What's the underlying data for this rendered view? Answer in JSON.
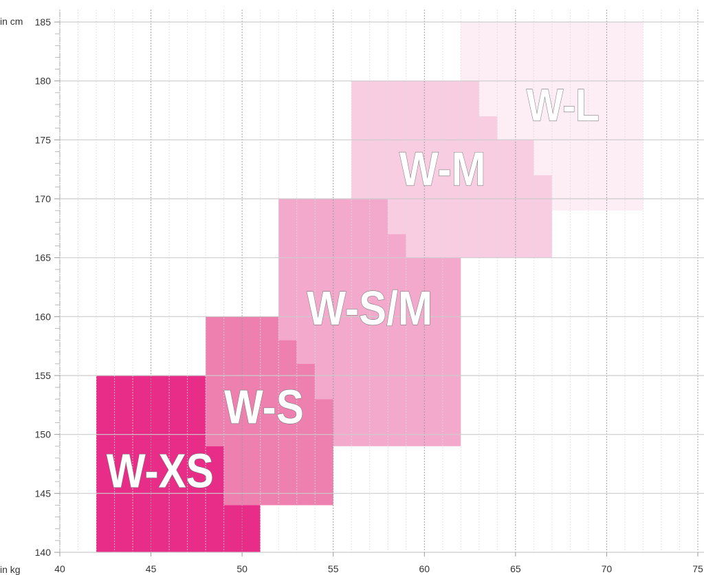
{
  "chart_data": {
    "type": "area",
    "title": "",
    "xlabel": "in kg",
    "ylabel": "in cm",
    "xlim": [
      40,
      75
    ],
    "ylim": [
      140,
      185
    ],
    "xticks": [
      "40",
      "45",
      "50",
      "55",
      "60",
      "65",
      "70",
      "75"
    ],
    "yticks": [
      "140",
      "145",
      "150",
      "155",
      "160",
      "165",
      "170",
      "175",
      "180",
      "185"
    ],
    "grid": {
      "major_x": "dotted",
      "minor_x": "dotted every 1 kg",
      "major_y": "solid"
    },
    "series": [
      {
        "name": "W-L",
        "color": "#fdedf4",
        "polygon": [
          [
            62,
            185
          ],
          [
            72,
            185
          ],
          [
            72,
            169
          ],
          [
            67,
            169
          ],
          [
            67,
            172
          ],
          [
            66,
            172
          ],
          [
            66,
            175
          ],
          [
            64,
            175
          ],
          [
            64,
            177
          ],
          [
            63,
            177
          ],
          [
            63,
            180
          ],
          [
            62,
            180
          ]
        ]
      },
      {
        "name": "W-M",
        "color": "#f8cde1",
        "polygon": [
          [
            56,
            180
          ],
          [
            63,
            180
          ],
          [
            63,
            177
          ],
          [
            64,
            177
          ],
          [
            64,
            175
          ],
          [
            66,
            175
          ],
          [
            66,
            172
          ],
          [
            67,
            172
          ],
          [
            67,
            165
          ],
          [
            59,
            165
          ],
          [
            59,
            167
          ],
          [
            58,
            167
          ],
          [
            58,
            170
          ],
          [
            56,
            170
          ]
        ]
      },
      {
        "name": "W-S/M",
        "color": "#f3a9cc",
        "polygon": [
          [
            52,
            170
          ],
          [
            58,
            170
          ],
          [
            58,
            167
          ],
          [
            59,
            167
          ],
          [
            59,
            165
          ],
          [
            62,
            165
          ],
          [
            62,
            149
          ],
          [
            55,
            149
          ],
          [
            55,
            153
          ],
          [
            54,
            153
          ],
          [
            54,
            156
          ],
          [
            53,
            156
          ],
          [
            53,
            158
          ],
          [
            52,
            158
          ]
        ]
      },
      {
        "name": "W-S",
        "color": "#ee80b0",
        "polygon": [
          [
            48,
            160
          ],
          [
            52,
            160
          ],
          [
            52,
            158
          ],
          [
            53,
            158
          ],
          [
            53,
            156
          ],
          [
            54,
            156
          ],
          [
            54,
            153
          ],
          [
            55,
            153
          ],
          [
            55,
            144
          ],
          [
            49,
            144
          ],
          [
            49,
            149
          ],
          [
            48,
            149
          ]
        ]
      },
      {
        "name": "W-XS",
        "color": "#e82d89",
        "polygon": [
          [
            42,
            155
          ],
          [
            48,
            155
          ],
          [
            48,
            149
          ],
          [
            49,
            149
          ],
          [
            49,
            144
          ],
          [
            51,
            144
          ],
          [
            51,
            140
          ],
          [
            42,
            140
          ]
        ]
      }
    ],
    "labels": [
      {
        "text": "W-XS",
        "at": [
          45.5,
          147
        ]
      },
      {
        "text": "W-S",
        "at": [
          51.2,
          152.4
        ]
      },
      {
        "text": "W-S/M",
        "at": [
          57,
          160.8
        ]
      },
      {
        "text": "W-M",
        "at": [
          61,
          172.6
        ]
      },
      {
        "text": "W-L",
        "at": [
          67.6,
          178
        ]
      }
    ]
  }
}
